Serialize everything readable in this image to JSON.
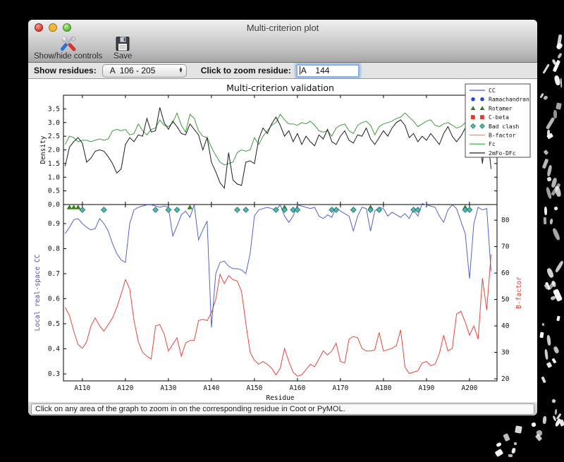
{
  "window": {
    "title": "Multi-criterion plot",
    "toolbar": {
      "items": [
        {
          "label": "Show/hide controls",
          "icon": "tools-icon"
        },
        {
          "label": "Save",
          "icon": "save-icon"
        }
      ]
    },
    "controls": {
      "show_residues_label": "Show residues:",
      "show_residues_value": "A  106 - 205",
      "zoom_residue_label": "Click to zoom residue:",
      "zoom_residue_value": "A    144"
    },
    "status_bar": "Click on any area of the graph to zoom in on the corresponding residue in Coot or PyMOL."
  },
  "chart_data": {
    "type": "line",
    "title": "Multi-criterion validation",
    "xlabel": "Residue",
    "x_start": 106,
    "x_end": 205,
    "x_ticks": [
      {
        "value": 110,
        "label": "A110"
      },
      {
        "value": 120,
        "label": "A120"
      },
      {
        "value": 130,
        "label": "A130"
      },
      {
        "value": 140,
        "label": "A140"
      },
      {
        "value": 150,
        "label": "A150"
      },
      {
        "value": 160,
        "label": "A160"
      },
      {
        "value": 170,
        "label": "A170"
      },
      {
        "value": 180,
        "label": "A180"
      },
      {
        "value": 190,
        "label": "A190"
      },
      {
        "value": 200,
        "label": "A200"
      }
    ],
    "top_panel": {
      "ylabel": "Density",
      "ylim": [
        0,
        4.0
      ],
      "yticks": [
        {
          "v": 0.0,
          "label": "0.0"
        },
        {
          "v": 0.5,
          "label": "0.5"
        },
        {
          "v": 1.0,
          "label": "1.0"
        },
        {
          "v": 1.5,
          "label": "1.5"
        },
        {
          "v": 2.0,
          "label": "2.0"
        },
        {
          "v": 2.5,
          "label": "2.5"
        },
        {
          "v": 3.0,
          "label": "3.0"
        },
        {
          "v": 3.5,
          "label": "3.5"
        }
      ],
      "series": [
        {
          "name": "Fc",
          "color": "#419a3e",
          "values": [
            2.2,
            2.5,
            2.45,
            2.3,
            2.35,
            2.35,
            2.3,
            2.35,
            2.4,
            2.35,
            2.4,
            2.7,
            2.75,
            2.7,
            2.75,
            2.55,
            2.6,
            2.95,
            2.7,
            2.55,
            2.75,
            2.8,
            3.1,
            2.9,
            2.85,
            3.0,
            3.35,
            2.9,
            2.65,
            3.3,
            3.15,
            2.7,
            2.5,
            2.45,
            2.1,
            1.8,
            1.55,
            1.45,
            1.5,
            1.55,
            1.9,
            2.0,
            1.95,
            2.0,
            2.45,
            2.2,
            2.5,
            2.7,
            2.9,
            3.0,
            3.3,
            3.1,
            2.95,
            2.95,
            2.9,
            3.0,
            2.95,
            3.05,
            2.9,
            2.7,
            2.65,
            2.7,
            2.5,
            2.8,
            2.9,
            2.95,
            2.7,
            2.6,
            2.9,
            3.0,
            3.05,
            2.9,
            2.55,
            2.85,
            2.95,
            3.0,
            3.05,
            3.15,
            3.2,
            3.35,
            3.2,
            3.05,
            2.85,
            2.95,
            3.05,
            3.1,
            2.9,
            2.85,
            2.95,
            3.0,
            2.9,
            2.8,
            2.85,
            3.0,
            2.9,
            3.1,
            3.3,
            3.4,
            2.65,
            3.2
          ]
        },
        {
          "name": "2mFo-DFc",
          "color": "#1c1c1c",
          "values": [
            1.4,
            2.1,
            2.3,
            2.45,
            2.25,
            1.55,
            1.7,
            1.95,
            2.0,
            1.95,
            1.75,
            1.5,
            1.15,
            1.3,
            2.2,
            2.45,
            2.3,
            2.55,
            2.5,
            3.15,
            2.65,
            2.7,
            3.55,
            3.0,
            2.75,
            3.05,
            2.85,
            2.6,
            2.55,
            2.95,
            2.75,
            2.55,
            2.0,
            2.45,
            1.55,
            1.2,
            0.8,
            0.6,
            1.9,
            0.9,
            0.75,
            0.7,
            1.55,
            1.6,
            1.5,
            2.4,
            2.8,
            2.6,
            2.95,
            3.2,
            2.9,
            2.5,
            2.7,
            2.3,
            2.6,
            2.2,
            2.5,
            2.3,
            2.15,
            2.55,
            2.4,
            2.75,
            2.3,
            2.2,
            2.5,
            2.7,
            2.35,
            2.25,
            2.55,
            2.5,
            2.8,
            2.4,
            2.2,
            2.45,
            2.7,
            2.5,
            2.8,
            3.0,
            3.1,
            2.9,
            2.45,
            2.6,
            2.3,
            2.5,
            2.35,
            2.6,
            2.4,
            2.2,
            2.6,
            2.85,
            2.5,
            2.3,
            2.5,
            2.8,
            2.6,
            2.9,
            3.1,
            1.5,
            2.9,
            1.3
          ]
        }
      ]
    },
    "bottom_panel": {
      "left_ylabel": "Local real-space CC",
      "left_ylabel_color": "#4553c8",
      "left_ylim": [
        0.272,
        0.976
      ],
      "left_yticks": [
        {
          "v": 0.3,
          "label": "0.3"
        },
        {
          "v": 0.4,
          "label": "0.4"
        },
        {
          "v": 0.5,
          "label": "0.5"
        },
        {
          "v": 0.6,
          "label": "0.6"
        },
        {
          "v": 0.7,
          "label": "0.7"
        },
        {
          "v": 0.8,
          "label": "0.8"
        },
        {
          "v": 0.9,
          "label": "0.9"
        }
      ],
      "right_ylabel": "B-factor",
      "right_ylabel_color": "#d43d32",
      "right_ylim": [
        19.2,
        85.9
      ],
      "right_yticks": [
        {
          "v": 20,
          "label": "20"
        },
        {
          "v": 30,
          "label": "30"
        },
        {
          "v": 40,
          "label": "40"
        },
        {
          "v": 50,
          "label": "50"
        },
        {
          "v": 60,
          "label": "60"
        },
        {
          "v": 70,
          "label": "70"
        },
        {
          "v": 80,
          "label": "80"
        }
      ],
      "series": [
        {
          "name": "CC",
          "axis": "left",
          "color": "#5263cf",
          "values": [
            0.86,
            0.885,
            0.915,
            0.92,
            0.9,
            0.885,
            0.875,
            0.88,
            0.92,
            0.9,
            0.87,
            0.82,
            0.78,
            0.755,
            0.745,
            0.9,
            0.955,
            0.965,
            0.97,
            0.975,
            0.975,
            0.97,
            0.965,
            0.97,
            0.965,
            0.85,
            0.89,
            0.935,
            0.95,
            0.925,
            0.975,
            0.835,
            0.875,
            0.91,
            0.485,
            0.7,
            0.745,
            0.75,
            0.73,
            0.72,
            0.72,
            0.715,
            0.7,
            0.78,
            0.93,
            0.955,
            0.96,
            0.965,
            0.96,
            0.955,
            0.975,
            0.93,
            0.905,
            0.93,
            0.975,
            0.97,
            0.965,
            0.96,
            0.965,
            0.93,
            0.92,
            0.935,
            0.925,
            0.965,
            0.95,
            0.94,
            0.93,
            0.87,
            0.93,
            0.965,
            0.96,
            0.87,
            0.95,
            0.965,
            0.96,
            0.93,
            0.945,
            0.935,
            0.925,
            0.94,
            0.92,
            0.955,
            0.93,
            0.98,
            0.975,
            0.97,
            0.965,
            0.93,
            0.905,
            0.955,
            0.975,
            0.96,
            0.91,
            0.86,
            0.68,
            0.9,
            0.965,
            0.955,
            0.96,
            0.71
          ]
        },
        {
          "name": "B-factor",
          "axis": "right",
          "color": "#e8463c",
          "values": [
            47,
            44,
            38,
            33,
            31.5,
            34,
            40,
            43,
            40,
            38,
            40.5,
            43,
            47,
            52,
            57.5,
            54,
            42,
            34,
            30,
            28.5,
            27.5,
            40,
            40.5,
            37,
            30.5,
            33,
            35.5,
            28.5,
            33.5,
            34.5,
            34.5,
            42,
            42.5,
            42,
            45,
            50,
            59.5,
            56,
            59,
            57.5,
            57,
            53,
            41,
            30,
            27,
            25.5,
            26.5,
            25.5,
            24,
            21.5,
            24,
            31.5,
            26.5,
            22.5,
            21,
            21.5,
            23.5,
            25.5,
            24.5,
            27.5,
            30.5,
            29,
            30.5,
            33.5,
            26.5,
            26,
            35,
            36,
            35.5,
            31.5,
            30.5,
            30.5,
            31,
            37.5,
            30.5,
            31,
            31.5,
            32.5,
            38.5,
            24.5,
            22,
            22.5,
            23,
            26,
            26.5,
            25,
            25.5,
            29.5,
            36.5,
            30.5,
            31.5,
            44.5,
            45.5,
            41.5,
            36.5,
            40,
            35,
            58,
            46,
            67
          ]
        }
      ],
      "markers": [
        {
          "name": "Rotamer",
          "shape": "triangle",
          "color": "#347d1d",
          "residues": [
            107,
            108,
            109,
            135,
            157,
            177,
            199
          ]
        },
        {
          "name": "Bad clash",
          "shape": "diamond",
          "color": "#52b8b0",
          "edge": "#22766f",
          "residues": [
            110,
            115,
            127,
            130,
            132,
            146,
            148,
            155,
            157,
            159,
            160,
            168,
            169,
            173,
            177,
            179,
            187,
            188,
            199,
            200
          ]
        }
      ]
    },
    "legend": {
      "position": "upper right",
      "entries": [
        {
          "label": "CC",
          "swatch": "line",
          "color": "#5263cf"
        },
        {
          "label": "Ramachandran",
          "swatch": "dots",
          "color": "#2d49c9"
        },
        {
          "label": "Rotamer",
          "swatch": "triangles",
          "color": "#347d1d"
        },
        {
          "label": "C-beta",
          "swatch": "squares",
          "color": "#e6392e"
        },
        {
          "label": "Bad clash",
          "swatch": "diamonds",
          "color": "#52b8b0",
          "edge": "#22766f"
        },
        {
          "label": "B-factor",
          "swatch": "line",
          "color": "#f0897b"
        },
        {
          "label": "Fc",
          "swatch": "line",
          "color": "#419a3e"
        },
        {
          "label": "2mFo-DFc",
          "swatch": "line",
          "color": "#222222"
        }
      ]
    }
  }
}
